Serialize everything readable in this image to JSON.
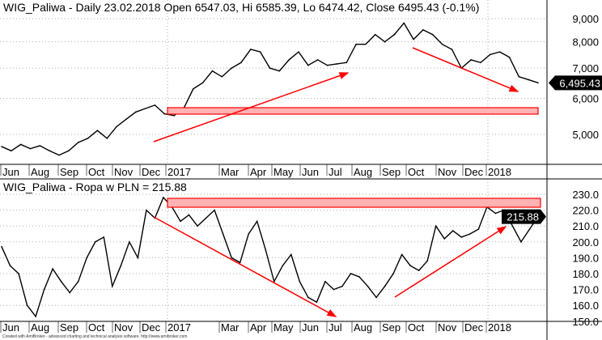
{
  "colors": {
    "price_line": "#000000",
    "annotation": "#ff0000",
    "zone_fill": "#ffb3b3",
    "grid": "#aaaaaa"
  },
  "chart_data": [
    {
      "type": "line",
      "title": "WIG_Paliwa - Daily 23.02.2018 Open 6547.03, Hi 6585.39, Lo 6474.42, Close 6495.43 (-0.1%)",
      "scale": "log",
      "ylim": [
        4350,
        9200
      ],
      "y_ticks": [
        "9,000",
        "8,000",
        "7,000",
        "6,000",
        "5,000"
      ],
      "y_tick_values": [
        9000,
        8000,
        7000,
        6000,
        5000
      ],
      "x_ticks": [
        "Jun",
        "Aug",
        "Sep",
        "Oct",
        "Nov",
        "Dec",
        "2017",
        "Mar",
        "Apr",
        "May",
        "Jun",
        "Jul",
        "Aug",
        "Sep",
        "Oct",
        "Nov",
        "Dec",
        "2018"
      ],
      "last_value_label": "6,495.43",
      "values": [
        4700,
        4600,
        4750,
        4650,
        4720,
        4600,
        4500,
        4600,
        4800,
        4900,
        5100,
        4900,
        5200,
        5400,
        5600,
        5700,
        5800,
        5550,
        5500,
        5700,
        6300,
        6500,
        6900,
        6700,
        7000,
        7200,
        7700,
        7600,
        7000,
        6900,
        7300,
        7600,
        7100,
        7300,
        7100,
        7150,
        7200,
        7900,
        7900,
        8300,
        8000,
        8300,
        8800,
        8100,
        8500,
        8300,
        7900,
        7700,
        7000,
        7300,
        7200,
        7500,
        7600,
        7400,
        6700,
        6600,
        6495.43
      ]
    },
    {
      "type": "line",
      "title": "WIG_Paliwa - Ropa w PLN = 215.88",
      "ylim": [
        150,
        230
      ],
      "y_ticks": [
        "230.0",
        "220.0",
        "210.0",
        "200.0",
        "190.0",
        "180.0",
        "170.0",
        "160.0",
        "150.0"
      ],
      "y_tick_values": [
        230,
        220,
        210,
        200,
        190,
        180,
        170,
        160,
        150
      ],
      "x_ticks": [
        "Jun",
        "Aug",
        "Sep",
        "Oct",
        "Nov",
        "Dec",
        "2017",
        "Mar",
        "Apr",
        "May",
        "Jun",
        "Jul",
        "Aug",
        "Sep",
        "Oct",
        "Nov",
        "Dec",
        "2018"
      ],
      "last_value_label": "215.88",
      "values": [
        197,
        185,
        180,
        160,
        153,
        170,
        183,
        175,
        168,
        175,
        190,
        200,
        203,
        172,
        185,
        200,
        190,
        220,
        215,
        228,
        222,
        213,
        217,
        210,
        215,
        220,
        205,
        190,
        187,
        205,
        213,
        195,
        175,
        185,
        192,
        175,
        165,
        162,
        175,
        170,
        172,
        180,
        178,
        172,
        165,
        172,
        180,
        192,
        185,
        182,
        188,
        210,
        202,
        207,
        203,
        205,
        208,
        222,
        218,
        220,
        210,
        200,
        208,
        215.88
      ]
    }
  ],
  "footer": "Created with AmiBroker - advanced charting and technical analysis software. http://www.amibroker.com"
}
